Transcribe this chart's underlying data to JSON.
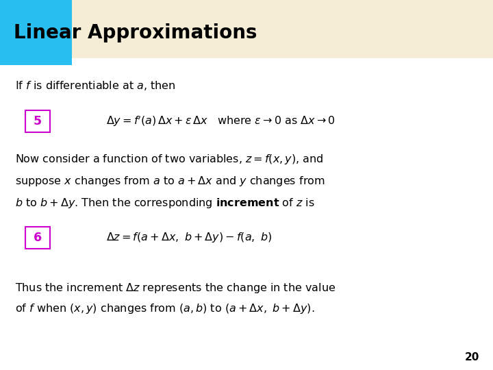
{
  "title": "Linear Approximations",
  "title_color": "#000000",
  "title_bg_color": "#F5EDD6",
  "title_cyan_block_color": "#29BFEF",
  "bg_color": "#FFFFFF",
  "line1": "If $f$ is differentiable at $a$, then",
  "eq5_label": "5",
  "eq5_text": "$\\Delta y = f'(a)\\, \\Delta x + \\varepsilon\\, \\Delta x$   where $\\varepsilon \\rightarrow 0$ as $\\Delta x \\rightarrow 0$",
  "eq6_label": "6",
  "eq6_text": "$\\Delta z = f(a + \\Delta x,\\ b + \\Delta y) - f(a,\\ b)$",
  "para1_line1": "Now consider a function of two variables, $z = f(x, y)$, and",
  "para1_line2": "suppose $x$ changes from $a$ to $a + \\Delta x$ and $y$ changes from",
  "para1_line3": "$b$ to $b + \\Delta y$. Then the corresponding $\\bf{increment}$ of $z$ is",
  "para2_line1": "Thus the increment $\\Delta z$ represents the change in the value",
  "para2_line2": "of $f$ when $(x, y)$ changes from $(a, b)$ to $(a + \\Delta x,\\ b + \\Delta y)$.",
  "page_num": "20",
  "label_color": "#CC00CC",
  "label_border_color": "#CC00CC",
  "text_color": "#000000",
  "font_size_title": 20,
  "font_size_body": 11.5,
  "font_size_eq": 11.5,
  "font_size_page": 11
}
